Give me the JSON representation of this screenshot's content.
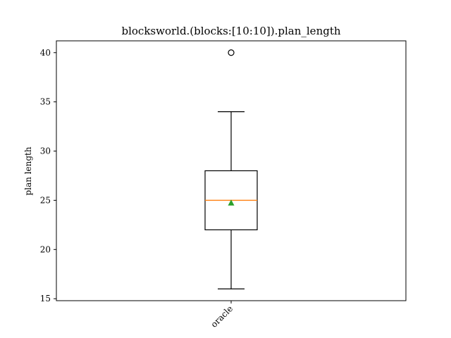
{
  "chart_data": {
    "type": "box",
    "title": "blocksworld.(blocks:[10:10]).plan_length",
    "xlabel": "",
    "ylabel": "plan length",
    "ylim": [
      14.8,
      41.2
    ],
    "yticks": [
      15,
      20,
      25,
      30,
      35,
      40
    ],
    "categories": [
      "oracle"
    ],
    "series": [
      {
        "whisker_low": 16,
        "q1": 22,
        "median": 25,
        "q3": 28,
        "whisker_high": 34,
        "mean": 24.75,
        "outliers": [
          40
        ]
      }
    ],
    "grid": false,
    "legend": "none",
    "colors": {
      "box": "#000000",
      "median": "#ff7f0e",
      "mean_marker": "#2ca02c",
      "outlier": "#000000"
    }
  }
}
